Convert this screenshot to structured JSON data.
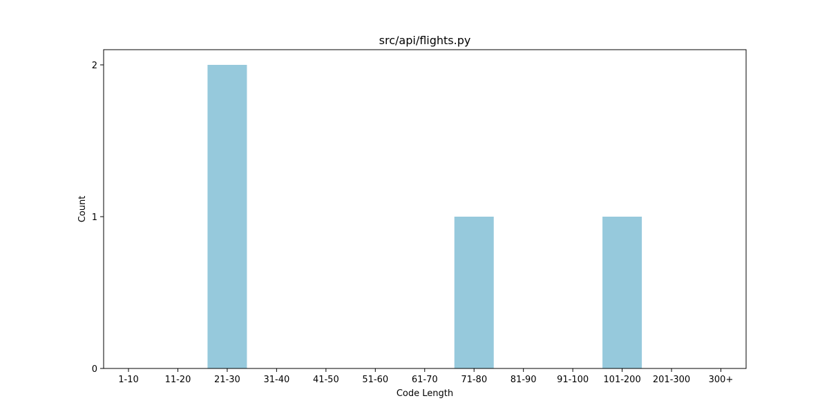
{
  "chart_data": {
    "type": "bar",
    "title": "src/api/flights.py",
    "xlabel": "Code Length",
    "ylabel": "Count",
    "categories": [
      "1-10",
      "11-20",
      "21-30",
      "31-40",
      "41-50",
      "51-60",
      "61-70",
      "71-80",
      "81-90",
      "91-100",
      "101-200",
      "201-300",
      "300+"
    ],
    "values": [
      0,
      0,
      2,
      0,
      0,
      0,
      0,
      1,
      0,
      0,
      1,
      0,
      0
    ],
    "ylim": [
      0,
      2.1
    ],
    "yticks": [
      "0",
      "1",
      "2"
    ],
    "grid": false,
    "legend": "none",
    "bar_color": "#96c9dc"
  }
}
